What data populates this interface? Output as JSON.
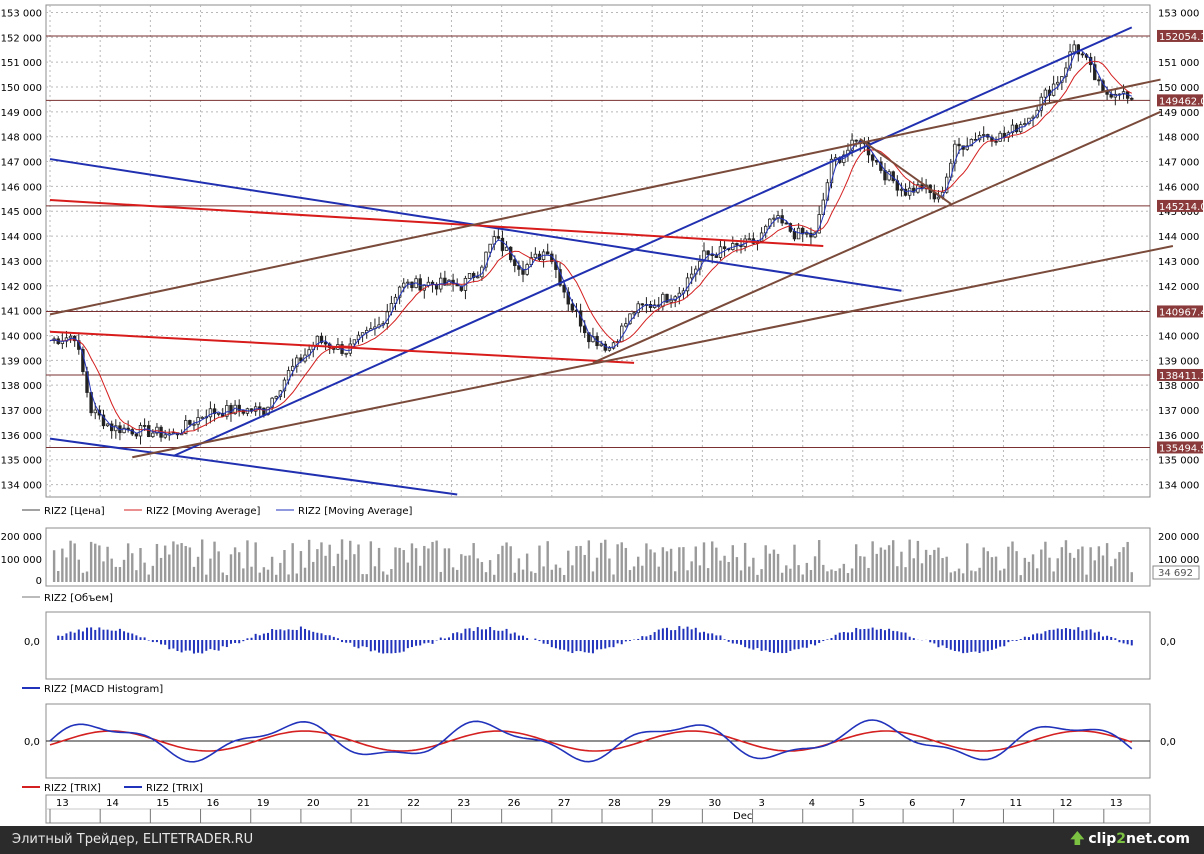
{
  "chart_data": [
    {
      "type": "candlestick",
      "instrument": "RIZ2",
      "yticks": [
        "153 000",
        "152 000",
        "151 000",
        "150 000",
        "149 000",
        "148 000",
        "147 000",
        "146 000",
        "145 000",
        "144 000",
        "143 000",
        "142 000",
        "141 000",
        "140 000",
        "139 000",
        "138 000",
        "137 000",
        "136 000",
        "135 000",
        "134 000"
      ],
      "ylim": [
        133500,
        153300
      ],
      "series": [
        {
          "name": "RIZ2 [Цена]",
          "color": "#444444"
        },
        {
          "name": "RIZ2 [Moving Average]",
          "color": "#d42020"
        },
        {
          "name": "RIZ2 [Moving Average]",
          "color": "#2233bb"
        }
      ],
      "levels": [
        {
          "value": 152054,
          "label": "152054.1"
        },
        {
          "value": 149462,
          "label": "149462.0"
        },
        {
          "value": 145214,
          "label": "145214.0"
        },
        {
          "value": 140967,
          "label": "140967.4"
        },
        {
          "value": 138411,
          "label": "138411.1"
        },
        {
          "value": 135494,
          "label": "135494.9"
        }
      ],
      "trendlines": [
        {
          "color": "#2030b0",
          "from": [
            0,
            147100
          ],
          "to": [
            207,
            141800
          ]
        },
        {
          "color": "#2030b0",
          "from": [
            0,
            135850
          ],
          "to": [
            99,
            133600
          ]
        },
        {
          "color": "#2030b0",
          "from": [
            30,
            135150
          ],
          "to": [
            263,
            152400
          ]
        },
        {
          "color": "#d81c1c",
          "from": [
            0,
            145450
          ],
          "to": [
            188,
            143600
          ]
        },
        {
          "color": "#d81c1c",
          "from": [
            0,
            140150
          ],
          "to": [
            142,
            138900
          ]
        },
        {
          "color": "#7a4a3a",
          "from": [
            0,
            140850
          ],
          "to": [
            270,
            150300
          ]
        },
        {
          "color": "#7a4a3a",
          "from": [
            20,
            135100
          ],
          "to": [
            273,
            143600
          ]
        },
        {
          "color": "#7a4a3a",
          "from": [
            132,
            138900
          ],
          "to": [
            270,
            149000
          ]
        },
        {
          "color": "#7a4a3a",
          "from": [
            197,
            147900
          ],
          "to": [
            219,
            145300
          ]
        }
      ],
      "price": [
        {
          "x": 0,
          "y": 139800
        },
        {
          "x": 6,
          "y": 140000
        },
        {
          "x": 10,
          "y": 137000
        },
        {
          "x": 15,
          "y": 136300
        },
        {
          "x": 25,
          "y": 136100
        },
        {
          "x": 30,
          "y": 136000
        },
        {
          "x": 38,
          "y": 136900
        },
        {
          "x": 45,
          "y": 137000
        },
        {
          "x": 52,
          "y": 137000
        },
        {
          "x": 58,
          "y": 138500
        },
        {
          "x": 65,
          "y": 139800
        },
        {
          "x": 72,
          "y": 139400
        },
        {
          "x": 80,
          "y": 140400
        },
        {
          "x": 85,
          "y": 142000
        },
        {
          "x": 92,
          "y": 142100
        },
        {
          "x": 100,
          "y": 142000
        },
        {
          "x": 104,
          "y": 142600
        },
        {
          "x": 108,
          "y": 143900
        },
        {
          "x": 115,
          "y": 142700
        },
        {
          "x": 121,
          "y": 143500
        },
        {
          "x": 126,
          "y": 141400
        },
        {
          "x": 131,
          "y": 140000
        },
        {
          "x": 136,
          "y": 139500
        },
        {
          "x": 142,
          "y": 141000
        },
        {
          "x": 147,
          "y": 141300
        },
        {
          "x": 153,
          "y": 141800
        },
        {
          "x": 159,
          "y": 143200
        },
        {
          "x": 166,
          "y": 143500
        },
        {
          "x": 172,
          "y": 143800
        },
        {
          "x": 176,
          "y": 144700
        },
        {
          "x": 181,
          "y": 144100
        },
        {
          "x": 186,
          "y": 144000
        },
        {
          "x": 190,
          "y": 146900
        },
        {
          "x": 197,
          "y": 147900
        },
        {
          "x": 203,
          "y": 146500
        },
        {
          "x": 208,
          "y": 145800
        },
        {
          "x": 212,
          "y": 146000
        },
        {
          "x": 216,
          "y": 145400
        },
        {
          "x": 220,
          "y": 147500
        },
        {
          "x": 226,
          "y": 148100
        },
        {
          "x": 232,
          "y": 148000
        },
        {
          "x": 238,
          "y": 148800
        },
        {
          "x": 242,
          "y": 149700
        },
        {
          "x": 246,
          "y": 150500
        },
        {
          "x": 249,
          "y": 151700
        },
        {
          "x": 252,
          "y": 151000
        },
        {
          "x": 256,
          "y": 149700
        },
        {
          "x": 260,
          "y": 149900
        },
        {
          "x": 263,
          "y": 149300
        }
      ]
    },
    {
      "type": "bar",
      "series_name": "RIZ2 [Объем]",
      "yticks": [
        "200 000",
        "100 000",
        "0"
      ],
      "ylim": [
        0,
        230000
      ],
      "last_label": "34 692"
    },
    {
      "type": "bar",
      "series_name": "RIZ2 [MACD Histogram]",
      "yticks": [
        "0,0"
      ]
    },
    {
      "type": "line",
      "series": [
        {
          "name": "RIZ2 [TRIX]",
          "color": "#d42020"
        },
        {
          "name": "RIZ2 [TRIX]",
          "color": "#2233bb"
        }
      ],
      "yticks": [
        "0,0"
      ]
    }
  ],
  "xaxis": {
    "ticks": [
      "13",
      "14",
      "15",
      "16",
      "19",
      "20",
      "21",
      "22",
      "23",
      "26",
      "27",
      "28",
      "29",
      "30",
      "3",
      "4",
      "5",
      "6",
      "7",
      "11",
      "12",
      "13"
    ],
    "month_label": "Dec"
  },
  "footer": {
    "text": "Элитный Трейдер, ELITETRADER.RU",
    "brand_prefix": "clip",
    "brand_digit": "2",
    "brand_suffix": "net.com"
  }
}
